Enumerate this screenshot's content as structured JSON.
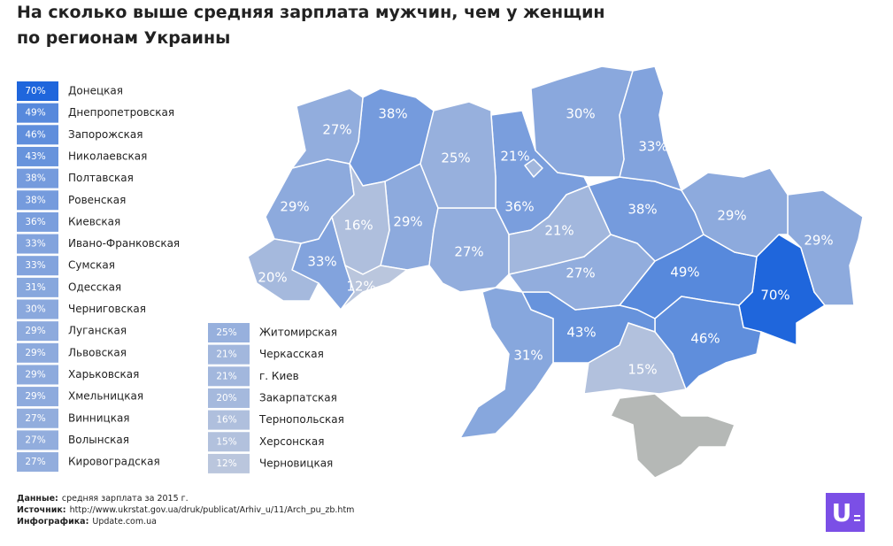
{
  "title": [
    "На сколько выше средняя зарплата мужчин, чем у женщин",
    "по регионам Украины"
  ],
  "regions": [
    {
      "name": "Донецкая",
      "value": 70,
      "label": "70%"
    },
    {
      "name": "Днепропетровская",
      "value": 49,
      "label": "49%"
    },
    {
      "name": "Запорожская",
      "value": 46,
      "label": "46%"
    },
    {
      "name": "Николаевская",
      "value": 43,
      "label": "43%"
    },
    {
      "name": "Полтавская",
      "value": 38,
      "label": "38%"
    },
    {
      "name": "Ровенская",
      "value": 38,
      "label": "38%"
    },
    {
      "name": "Киевская",
      "value": 36,
      "label": "36%"
    },
    {
      "name": "Ивано-Франковская",
      "value": 33,
      "label": "33%"
    },
    {
      "name": "Сумская",
      "value": 33,
      "label": "33%"
    },
    {
      "name": "Одесская",
      "value": 31,
      "label": "31%"
    },
    {
      "name": "Черниговская",
      "value": 30,
      "label": "30%"
    },
    {
      "name": "Луганская",
      "value": 29,
      "label": "29%"
    },
    {
      "name": "Львовская",
      "value": 29,
      "label": "29%"
    },
    {
      "name": "Харьковская",
      "value": 29,
      "label": "29%"
    },
    {
      "name": "Хмельницкая",
      "value": 29,
      "label": "29%"
    },
    {
      "name": "Винницкая",
      "value": 27,
      "label": "27%"
    },
    {
      "name": "Волынская",
      "value": 27,
      "label": "27%"
    },
    {
      "name": "Кировоградская",
      "value": 27,
      "label": "27%"
    },
    {
      "name": "Житомирская",
      "value": 25,
      "label": "25%"
    },
    {
      "name": "Черкасская",
      "value": 21,
      "label": "21%"
    },
    {
      "name": "г.  Киев",
      "value": 21,
      "label": "21%"
    },
    {
      "name": "Закарпатская",
      "value": 20,
      "label": "20%"
    },
    {
      "name": "Тернопольская",
      "value": 16,
      "label": "16%"
    },
    {
      "name": "Херсонская",
      "value": 15,
      "label": "15%"
    },
    {
      "name": "Черновицкая",
      "value": 12,
      "label": "12%"
    }
  ],
  "footer": [
    {
      "label": "Данные:",
      "text": "средняя зарплата за 2015 г."
    },
    {
      "label": "Источник:",
      "text": "http://www.ukrstat.gov.ua/druk/publicat/Arhiv_u/11/Arch_pu_zb.htm"
    },
    {
      "label": "Инфографика:",
      "text": "Update.com.ua"
    }
  ],
  "logo": "U"
}
